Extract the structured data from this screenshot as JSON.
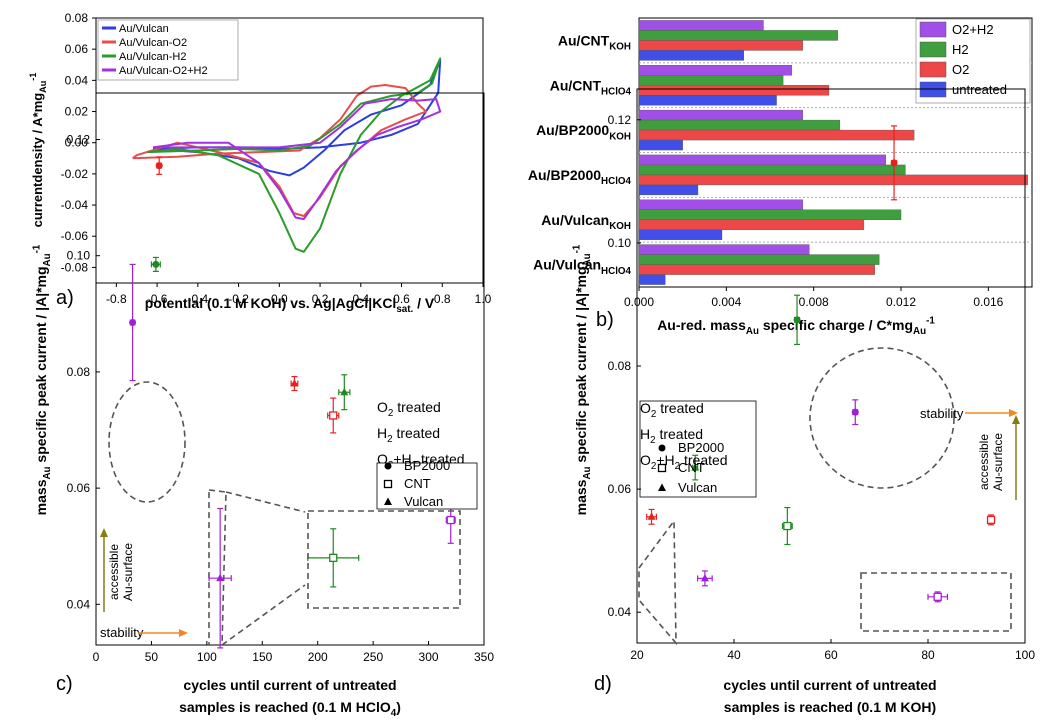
{
  "chart_data": [
    {
      "panel": "a)",
      "type": "line",
      "xlabel": "potential (0.1 M KOH) vs. Ag|AgCl|KCl",
      "xlabel_sub": "sat.",
      "xlabel_tail": " / V",
      "ylabel": "currentdensity / A*mg",
      "ylabel_sub": "Au",
      "ylabel_sup": "-1",
      "xlim": [
        -0.9,
        1.0
      ],
      "ylim": [
        -0.09,
        0.08
      ],
      "xticks": [
        "-0.8",
        "-0.6",
        "-0.4",
        "-0.2",
        "0.0",
        "0.2",
        "0.4",
        "0.6",
        "0.8",
        "1.0"
      ],
      "yticks": [
        "-0.08",
        "-0.06",
        "-0.04",
        "-0.02",
        "0.00",
        "0.02",
        "0.04",
        "0.06",
        "0.08"
      ],
      "legend_position": "top-left",
      "series": [
        {
          "name": "Au/Vulcan",
          "color": "#2b3ee0",
          "points": [
            [
              -0.62,
              -0.004
            ],
            [
              -0.4,
              -0.003
            ],
            [
              -0.2,
              -0.003
            ],
            [
              0.0,
              -0.004
            ],
            [
              0.2,
              -0.003
            ],
            [
              0.4,
              0.0
            ],
            [
              0.55,
              0.005
            ],
            [
              0.68,
              0.012
            ],
            [
              0.78,
              0.032
            ],
            [
              0.79,
              0.053
            ],
            [
              0.74,
              0.037
            ],
            [
              0.6,
              0.024
            ],
            [
              0.45,
              0.018
            ],
            [
              0.32,
              0.008
            ],
            [
              0.22,
              -0.005
            ],
            [
              0.12,
              -0.016
            ],
            [
              0.05,
              -0.021
            ],
            [
              -0.05,
              -0.018
            ],
            [
              -0.2,
              -0.01
            ],
            [
              -0.4,
              -0.006
            ],
            [
              -0.62,
              -0.004
            ]
          ]
        },
        {
          "name": "Au/Vulcan-O2",
          "color": "#e84d4d",
          "points": [
            [
              -0.72,
              -0.01
            ],
            [
              -0.5,
              -0.009
            ],
            [
              -0.3,
              -0.007
            ],
            [
              -0.1,
              -0.006
            ],
            [
              0.1,
              -0.005
            ],
            [
              0.2,
              0.003
            ],
            [
              0.3,
              0.015
            ],
            [
              0.38,
              0.03
            ],
            [
              0.45,
              0.036
            ],
            [
              0.52,
              0.037
            ],
            [
              0.62,
              0.035
            ],
            [
              0.68,
              0.025
            ],
            [
              0.72,
              0.02
            ],
            [
              0.62,
              0.015
            ],
            [
              0.5,
              0.008
            ],
            [
              0.4,
              -0.003
            ],
            [
              0.3,
              -0.015
            ],
            [
              0.2,
              -0.035
            ],
            [
              0.12,
              -0.047
            ],
            [
              0.07,
              -0.045
            ],
            [
              0.0,
              -0.028
            ],
            [
              -0.1,
              -0.013
            ],
            [
              -0.3,
              -0.006
            ],
            [
              -0.5,
              0.0
            ],
            [
              -0.7,
              -0.008
            ],
            [
              -0.72,
              -0.01
            ]
          ]
        },
        {
          "name": "Au/Vulcan-H2",
          "color": "#2a9c2a",
          "points": [
            [
              -0.65,
              -0.006
            ],
            [
              -0.4,
              -0.005
            ],
            [
              -0.2,
              -0.004
            ],
            [
              0.0,
              -0.005
            ],
            [
              0.15,
              -0.002
            ],
            [
              0.3,
              0.012
            ],
            [
              0.4,
              0.025
            ],
            [
              0.55,
              0.03
            ],
            [
              0.68,
              0.032
            ],
            [
              0.75,
              0.038
            ],
            [
              0.79,
              0.054
            ],
            [
              0.74,
              0.04
            ],
            [
              0.6,
              0.03
            ],
            [
              0.5,
              0.02
            ],
            [
              0.4,
              0.005
            ],
            [
              0.3,
              -0.02
            ],
            [
              0.2,
              -0.055
            ],
            [
              0.12,
              -0.07
            ],
            [
              0.08,
              -0.068
            ],
            [
              0.0,
              -0.045
            ],
            [
              -0.1,
              -0.02
            ],
            [
              -0.3,
              -0.008
            ],
            [
              -0.5,
              -0.004
            ],
            [
              -0.65,
              -0.006
            ]
          ]
        },
        {
          "name": "Au/Vulcan-O2+H2",
          "color": "#a22fe0",
          "points": [
            [
              -0.62,
              -0.003
            ],
            [
              -0.4,
              -0.003
            ],
            [
              -0.2,
              -0.003
            ],
            [
              0.0,
              -0.003
            ],
            [
              0.2,
              0.0
            ],
            [
              0.3,
              0.01
            ],
            [
              0.42,
              0.025
            ],
            [
              0.55,
              0.028
            ],
            [
              0.68,
              0.027
            ],
            [
              0.77,
              0.028
            ],
            [
              0.79,
              0.02
            ],
            [
              0.7,
              0.015
            ],
            [
              0.58,
              0.01
            ],
            [
              0.48,
              0.005
            ],
            [
              0.38,
              -0.005
            ],
            [
              0.28,
              -0.018
            ],
            [
              0.18,
              -0.038
            ],
            [
              0.12,
              -0.049
            ],
            [
              0.08,
              -0.048
            ],
            [
              0.0,
              -0.03
            ],
            [
              -0.1,
              -0.013
            ],
            [
              -0.25,
              0.0
            ],
            [
              -0.45,
              0.0
            ],
            [
              -0.62,
              -0.003
            ]
          ]
        }
      ]
    },
    {
      "panel": "b)",
      "type": "bar",
      "orientation": "horizontal",
      "xlabel": "Au-red. mass",
      "xlabel_sub": "Au",
      "xlabel_tail": " specific charge / C*mg",
      "xlabel_sub2": "Au",
      "xlabel_sup": "-1",
      "xlim": [
        0,
        0.018
      ],
      "xticks": [
        "0.000",
        "0.004",
        "0.008",
        "0.012",
        "0.016"
      ],
      "legend_position": "top-right",
      "categories": [
        {
          "main": "Au/CNT",
          "sub": "KOH"
        },
        {
          "main": "Au/CNT",
          "sub": "HClO4"
        },
        {
          "main": "Au/BP2000",
          "sub": "KOH"
        },
        {
          "main": "Au/BP2000",
          "sub": "HClO4"
        },
        {
          "main": "Au/Vulcan",
          "sub": "KOH"
        },
        {
          "main": "Au/Vulcan",
          "sub": "HClO4"
        }
      ],
      "series": [
        {
          "name": "O2+H2",
          "color": "#a24fe8",
          "values": [
            0.0057,
            0.007,
            0.0075,
            0.0113,
            0.0075,
            0.0078
          ]
        },
        {
          "name": "H2",
          "color": "#3f9f3f",
          "values": [
            0.0091,
            0.0066,
            0.0092,
            0.0122,
            0.012,
            0.011
          ]
        },
        {
          "name": "O2",
          "color": "#ee4747",
          "values": [
            0.0075,
            0.0087,
            0.0126,
            0.0178,
            0.0103,
            0.0108
          ]
        },
        {
          "name": "untreated",
          "color": "#3f4fe8",
          "values": [
            0.0048,
            0.0063,
            0.002,
            0.0027,
            0.0038,
            0.0012
          ]
        }
      ]
    },
    {
      "panel": "c)",
      "type": "scatter",
      "xlabel_line1": "cycles until current of untreated",
      "xlabel_line2": "samples is reached (0.1 M HClO",
      "xlabel_sub": "4",
      "xlabel_tail": ")",
      "ylabel": "mass",
      "ylabel_sub": "Au",
      "ylabel_mid": " specific peak current / |A|*mg",
      "ylabel_sub2": "Au",
      "ylabel_sup": "-1",
      "xlim": [
        0,
        350
      ],
      "ylim": [
        0.033,
        0.128
      ],
      "xticks": [
        "0",
        "50",
        "100",
        "150",
        "200",
        "250",
        "300",
        "350"
      ],
      "yticks": [
        "0.04",
        "0.06",
        "0.08",
        "0.10",
        "0.12"
      ],
      "annotations": {
        "up": [
          "accessible",
          "Au-surface"
        ],
        "right": "stability"
      },
      "points": [
        {
          "x": 57,
          "y": 0.1155,
          "xerr": 2,
          "yerr": 0.0015,
          "group": "O2",
          "marker": "circle"
        },
        {
          "x": 54,
          "y": 0.0985,
          "xerr": 4,
          "yerr": 0.0012,
          "group": "H2",
          "marker": "circle"
        },
        {
          "x": 33,
          "y": 0.0885,
          "xerr": 2,
          "yerr": 0.01,
          "group": "O2+H2",
          "marker": "circle"
        },
        {
          "x": 179,
          "y": 0.078,
          "xerr": 3,
          "yerr": 0.0012,
          "group": "O2",
          "marker": "triangle"
        },
        {
          "x": 224,
          "y": 0.0765,
          "xerr": 5,
          "yerr": 0.003,
          "group": "H2",
          "marker": "triangle"
        },
        {
          "x": 112,
          "y": 0.0445,
          "xerr": 10,
          "yerr": 0.012,
          "group": "O2+H2",
          "marker": "triangle"
        },
        {
          "x": 214,
          "y": 0.0725,
          "xerr": 5,
          "yerr": 0.003,
          "group": "O2",
          "marker": "square"
        },
        {
          "x": 214,
          "y": 0.048,
          "xerr": 23,
          "yerr": 0.005,
          "group": "H2",
          "marker": "square"
        },
        {
          "x": 320,
          "y": 0.0545,
          "xerr": 4,
          "yerr": 0.004,
          "group": "O2+H2",
          "marker": "square"
        }
      ]
    },
    {
      "panel": "d)",
      "type": "scatter",
      "xlabel_line1": "cycles until current of untreated",
      "xlabel_line2": "samples is reached (0.1 M KOH)",
      "ylabel": "mass",
      "ylabel_sub": "Au",
      "ylabel_mid": " specific peak current / |A|*mg",
      "ylabel_sub2": "Au",
      "ylabel_sup": "-1",
      "xlim": [
        20,
        100
      ],
      "ylim": [
        0.035,
        0.125
      ],
      "xticks": [
        "20",
        "40",
        "60",
        "80",
        "100"
      ],
      "yticks": [
        "0.04",
        "0.06",
        "0.08",
        "0.10",
        "0.12"
      ],
      "annotations": {
        "up": [
          "accessible",
          "Au-surface"
        ],
        "right": "stability"
      },
      "points": [
        {
          "x": 73,
          "y": 0.113,
          "xerr": 0.5,
          "yerr": 0.006,
          "group": "O2",
          "marker": "circle"
        },
        {
          "x": 53,
          "y": 0.0875,
          "xerr": 0.5,
          "yerr": 0.004,
          "group": "H2",
          "marker": "circle"
        },
        {
          "x": 65,
          "y": 0.0725,
          "xerr": 0.5,
          "yerr": 0.002,
          "group": "O2+H2",
          "marker": "circle"
        },
        {
          "x": 23,
          "y": 0.0555,
          "xerr": 1,
          "yerr": 0.0012,
          "group": "O2",
          "marker": "triangle"
        },
        {
          "x": 32,
          "y": 0.0635,
          "xerr": 0.5,
          "yerr": 0.002,
          "group": "H2",
          "marker": "triangle"
        },
        {
          "x": 34,
          "y": 0.0455,
          "xerr": 1.5,
          "yerr": 0.0012,
          "group": "O2+H2",
          "marker": "triangle"
        },
        {
          "x": 93,
          "y": 0.055,
          "xerr": 0.3,
          "yerr": 0.0008,
          "group": "O2",
          "marker": "square"
        },
        {
          "x": 51,
          "y": 0.054,
          "xerr": 1,
          "yerr": 0.003,
          "group": "H2",
          "marker": "square"
        },
        {
          "x": 82,
          "y": 0.0425,
          "xerr": 2,
          "yerr": 0.0008,
          "group": "O2+H2",
          "marker": "square"
        }
      ]
    }
  ],
  "scatter_legend": {
    "groups": [
      {
        "key": "O2",
        "pre": "O",
        "sub": "2",
        "post": " treated",
        "color": "#e82020"
      },
      {
        "key": "H2",
        "pre": "H",
        "sub": "2",
        "post": " treated",
        "color": "#1f8a1f"
      },
      {
        "key": "O2+H2",
        "pre": "O",
        "sub": "2",
        "mid": "+H",
        "sub2": "2",
        "post": " treated",
        "color": "#a21fd8"
      }
    ],
    "markers": [
      {
        "key": "circle",
        "label": "BP2000"
      },
      {
        "key": "square",
        "label": "CNT"
      },
      {
        "key": "triangle",
        "label": "Vulcan"
      }
    ]
  },
  "colors": {
    "annotation_up": "#8a7a10",
    "annotation_right": "#f08a20",
    "dashed": "#555555"
  }
}
